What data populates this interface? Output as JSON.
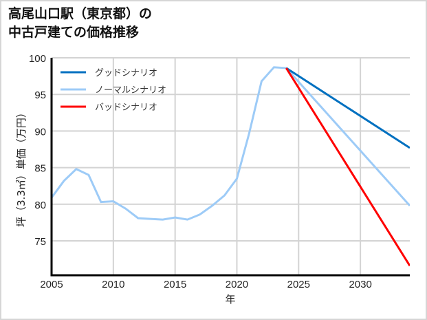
{
  "title": {
    "line1": "高尾山口駅（東京都）の",
    "line2": "中古戸建ての価格推移"
  },
  "colors": {
    "good": "#0070C0",
    "normal": "#9DCBF7",
    "bad": "#FF0000",
    "grid": "#d3d3d3",
    "axis": "#000000"
  },
  "chart_data": {
    "type": "line",
    "title": "高尾山口駅（東京都）の中古戸建ての価格推移",
    "xlabel": "年",
    "ylabel": "坪（3.3㎡）単価（万円）",
    "xlim": [
      2005,
      2034
    ],
    "ylim": [
      70.3,
      100
    ],
    "xticks": [
      2005,
      2010,
      2015,
      2020,
      2025,
      2030
    ],
    "yticks": [
      75,
      80,
      85,
      90,
      95,
      100
    ],
    "grid": true,
    "legend_position": "upper left",
    "series": [
      {
        "name": "グッドシナリオ",
        "color": "#0070C0",
        "x": [
          2024,
          2034
        ],
        "values": [
          98.6,
          87.7
        ]
      },
      {
        "name": "ノーマルシナリオ",
        "color": "#9DCBF7",
        "x": [
          2005,
          2006,
          2007,
          2008,
          2009,
          2010,
          2011,
          2012,
          2013,
          2014,
          2015,
          2016,
          2017,
          2018,
          2019,
          2020,
          2021,
          2022,
          2023,
          2024,
          2034
        ],
        "values": [
          80.9,
          83.2,
          84.8,
          84.0,
          80.3,
          80.4,
          79.4,
          78.1,
          78.0,
          77.9,
          78.2,
          77.9,
          78.6,
          79.8,
          81.2,
          83.5,
          89.7,
          96.8,
          98.7,
          98.6,
          79.8
        ]
      },
      {
        "name": "バッドシナリオ",
        "color": "#FF0000",
        "x": [
          2024,
          2034
        ],
        "values": [
          98.6,
          71.6
        ]
      }
    ]
  }
}
